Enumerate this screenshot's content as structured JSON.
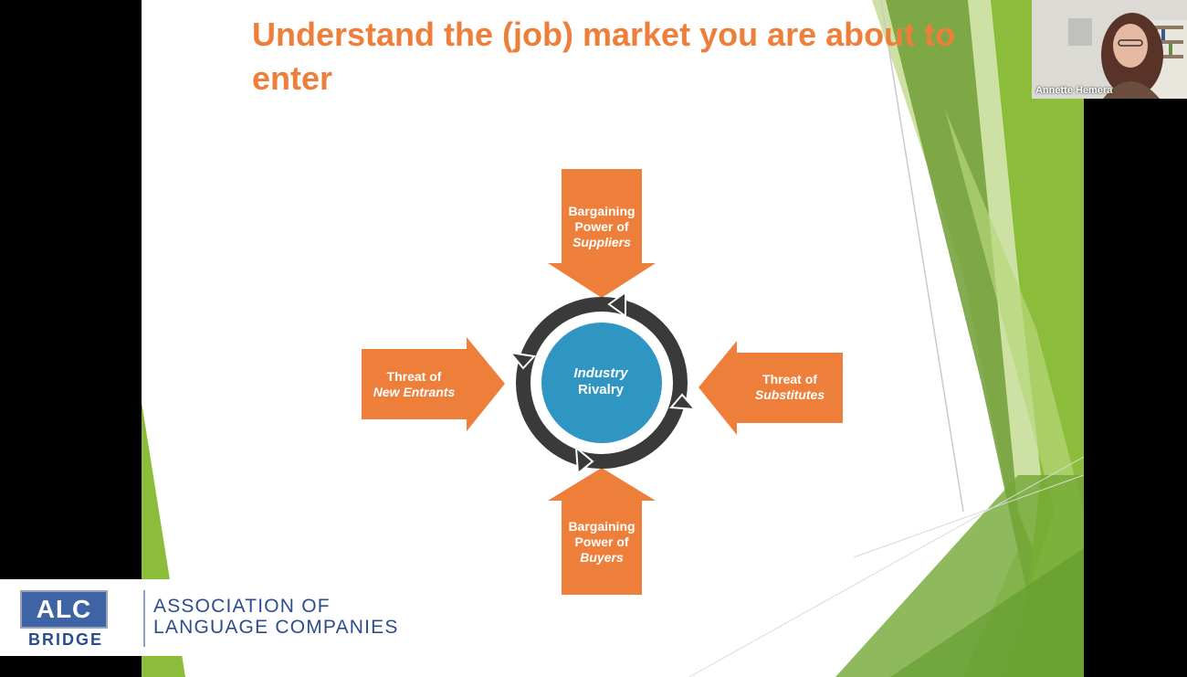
{
  "slide": {
    "title": "Understand the (job) market you are about to enter"
  },
  "diagram": {
    "center": {
      "line1": "Industry",
      "line2": "Rivalry"
    },
    "top": {
      "line1": "Bargaining",
      "line2": "Power of",
      "line3": "Suppliers"
    },
    "bottom": {
      "line1": "Bargaining",
      "line2": "Power of",
      "line3": "Buyers"
    },
    "left": {
      "line1": "Threat of",
      "line2": "New Entrants"
    },
    "right": {
      "line1": "Threat of",
      "line2": "Substitutes"
    },
    "colors": {
      "arrow": "#ee7f3b",
      "center": "#2f95c3",
      "ring": "#3a3a3a"
    }
  },
  "logo": {
    "badge": "ALC",
    "sub": "BRIDGE",
    "org_line1": "ASSOCIATION OF",
    "org_line2": "LANGUAGE COMPANIES"
  },
  "webcam": {
    "participant_name": "Annette Hemera"
  },
  "colors": {
    "title": "#ee7f3b",
    "green_light": "#9cc43c",
    "green_dark": "#6aa12f"
  }
}
